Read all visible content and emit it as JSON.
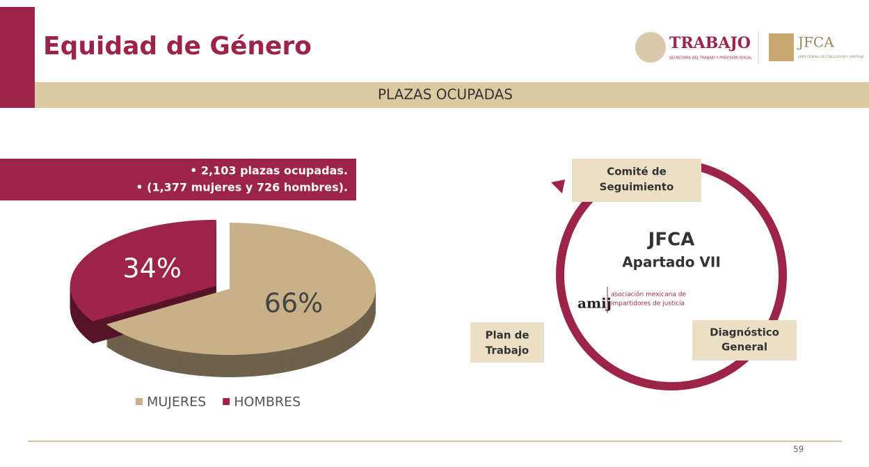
{
  "header": {
    "title": "Equidad de Género",
    "banner": "PLAZAS OCUPADAS",
    "logo_trabajo": {
      "name": "TRABAJO",
      "subtitle": "SECRETARÍA DEL TRABAJO Y PREVISIÓN SOCIAL"
    },
    "logo_jfca": {
      "name": "JFCA",
      "subtitle": "JUNTA FEDERAL DE CONCILIACIÓN Y ARBITRAJE"
    }
  },
  "notes": [
    "• 2,103 plazas ocupadas.",
    "• (1,377 mujeres y 726 hombres)."
  ],
  "chart_data": {
    "type": "pie",
    "categories": [
      "MUJERES",
      "HOMBRES"
    ],
    "values": [
      66,
      34
    ],
    "value_labels": [
      "66%",
      "34%"
    ],
    "colors": [
      "#c8b088",
      "#9d2449"
    ],
    "legend": "bottom"
  },
  "diagram": {
    "center": [
      "JFCA",
      "Apartado VII"
    ],
    "amij": {
      "name": "amij",
      "line1": "asociación mexicana de",
      "line2": "impartidores de justicia"
    },
    "nodes": [
      {
        "label": [
          "Comité de",
          "Seguimiento"
        ]
      },
      {
        "label": [
          "Diagnóstico",
          "General"
        ]
      },
      {
        "label": [
          "Plan de",
          "Trabajo"
        ]
      }
    ]
  },
  "page_number": "59"
}
